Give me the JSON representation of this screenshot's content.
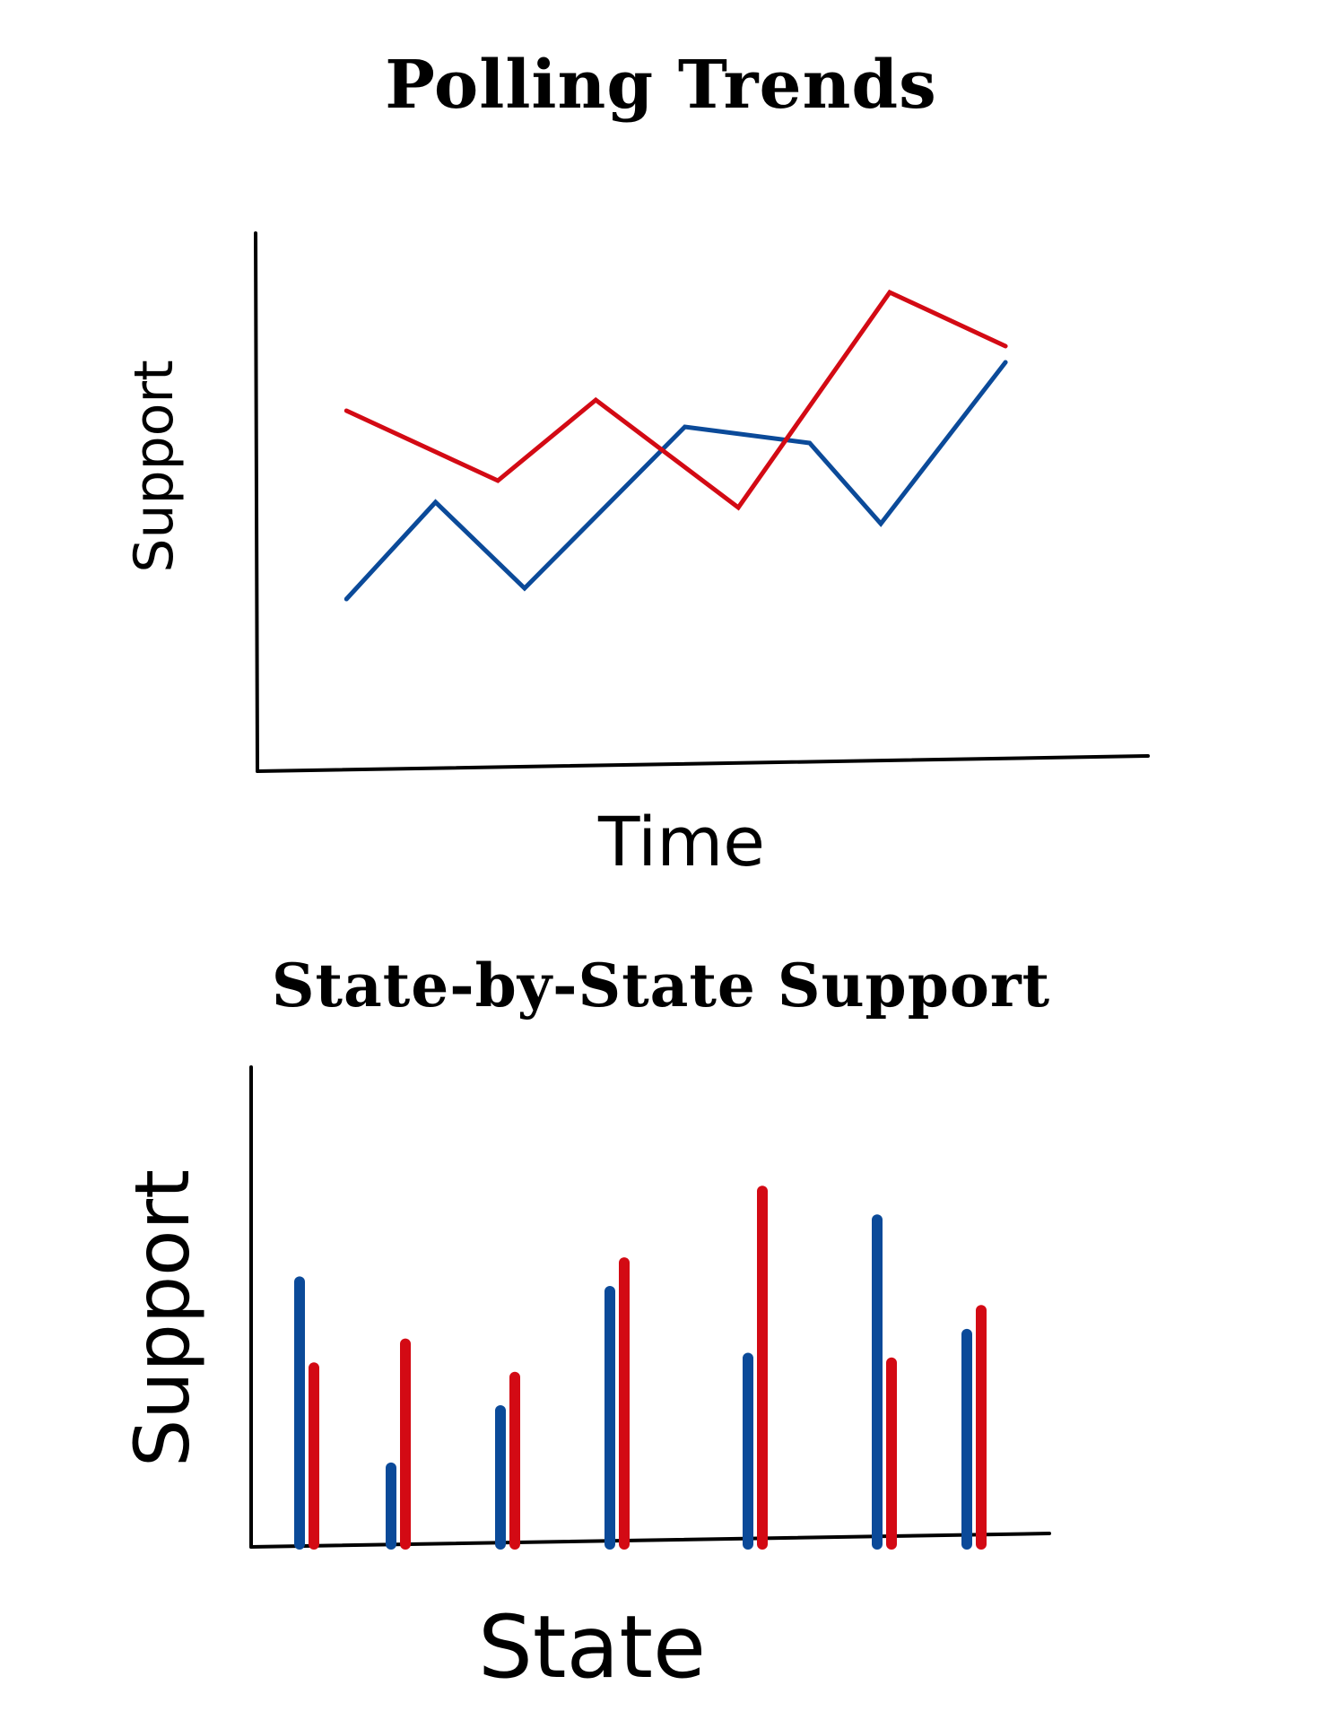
{
  "colors": {
    "blue": "#0b4a99",
    "red": "#d30a14",
    "axis": "#000000"
  },
  "chart_data": [
    {
      "type": "line",
      "title": "Polling Trends",
      "xlabel": "Time",
      "ylabel": "Support",
      "ylim": [
        0,
        100
      ],
      "grid": false,
      "series": [
        {
          "color": "blue",
          "x": [
            1,
            2,
            3,
            4,
            5,
            6,
            7,
            8
          ],
          "values": [
            32,
            50,
            34,
            64,
            61,
            46,
            76,
            0
          ]
        },
        {
          "color": "red",
          "x": [
            1,
            2,
            3,
            4,
            5,
            6,
            7,
            8
          ],
          "values": [
            67,
            54,
            69,
            49,
            89,
            79,
            0,
            0
          ]
        }
      ],
      "points": [
        {
          "series": "blue",
          "pts": [
            [
              1,
              32
            ],
            [
              2,
              50
            ],
            [
              3,
              34
            ],
            [
              4.8,
              64
            ],
            [
              6.2,
              61
            ],
            [
              7,
              46
            ],
            [
              8.4,
              76
            ]
          ]
        },
        {
          "series": "red",
          "pts": [
            [
              1,
              67
            ],
            [
              2.7,
              54
            ],
            [
              3.8,
              69
            ],
            [
              5.4,
              49
            ],
            [
              7.1,
              89
            ],
            [
              8.4,
              79
            ]
          ]
        }
      ]
    },
    {
      "type": "bar",
      "title": "State-by-State Support",
      "xlabel": "State",
      "ylabel": "Support",
      "ylim": [
        0,
        100
      ],
      "grid": false,
      "categories": [
        "",
        "",
        "",
        "",
        "",
        "",
        ""
      ],
      "series": [
        {
          "color": "blue",
          "values": [
            55,
            16,
            28,
            53,
            39,
            68,
            44
          ]
        },
        {
          "color": "red",
          "values": [
            37,
            42,
            35,
            59,
            74,
            38,
            49
          ]
        }
      ]
    }
  ]
}
